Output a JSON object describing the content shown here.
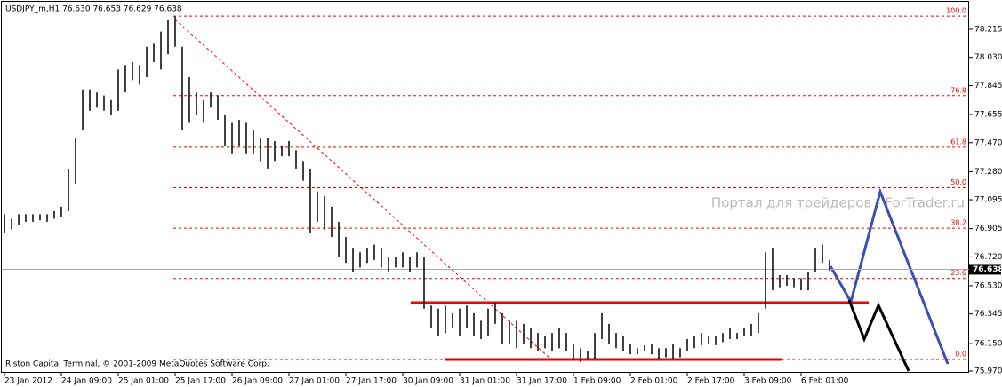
{
  "chart_data": {
    "type": "range-bar",
    "header": "USDJPY_m,H1  76.630 76.653 76.629 76.638",
    "watermark": "Портал для трейдеров - ForTrader.ru",
    "footer": "Riston Capital Terminal, © 2001-2009 MetaQuotes Software Corp.",
    "color": "#000000",
    "categories": [
      "23 Jan 2012",
      null,
      null,
      null,
      null,
      null,
      null,
      null,
      "24 Jan 09:00",
      null,
      null,
      null,
      null,
      null,
      null,
      null,
      "25 Jan 01:00",
      null,
      null,
      null,
      null,
      null,
      null,
      null,
      "25 Jan 17:00",
      null,
      null,
      null,
      null,
      null,
      null,
      null,
      "26 Jan 09:00",
      null,
      null,
      null,
      null,
      null,
      null,
      null,
      "27 Jan 01:00",
      null,
      null,
      null,
      null,
      null,
      null,
      null,
      "27 Jan 17:00",
      null,
      null,
      null,
      null,
      null,
      null,
      null,
      "30 Jan 09:00",
      null,
      null,
      null,
      null,
      null,
      null,
      null,
      "31 Jan 01:00",
      null,
      null,
      null,
      null,
      null,
      null,
      null,
      "31 Jan 17:00",
      null,
      null,
      null,
      null,
      null,
      null,
      null,
      "1 Feb 09:00",
      null,
      null,
      null,
      null,
      null,
      null,
      null,
      "2 Feb 01:00",
      null,
      null,
      null,
      null,
      null,
      null,
      null,
      "2 Feb 17:00",
      null,
      null,
      null,
      null,
      null,
      null,
      null,
      "3 Feb 09:00",
      null,
      null,
      null,
      null,
      null,
      null,
      null,
      "6 Feb 01:00",
      null,
      null,
      null,
      null
    ],
    "high": [
      77.0,
      76.97,
      77.0,
      77.0,
      77.0,
      77.0,
      77.0,
      77.02,
      77.05,
      77.3,
      77.5,
      77.82,
      77.82,
      77.8,
      77.78,
      77.75,
      77.95,
      77.98,
      78.0,
      77.98,
      78.1,
      78.12,
      78.2,
      78.28,
      78.3,
      78.1,
      77.9,
      77.8,
      77.75,
      77.8,
      77.78,
      77.65,
      77.6,
      77.62,
      77.6,
      77.55,
      77.5,
      77.5,
      77.48,
      77.45,
      77.48,
      77.42,
      77.35,
      77.3,
      77.15,
      77.12,
      77.05,
      76.95,
      76.85,
      76.78,
      76.75,
      76.78,
      76.8,
      76.78,
      76.72,
      76.72,
      76.75,
      76.72,
      76.75,
      76.72,
      76.4,
      76.38,
      76.4,
      76.35,
      76.38,
      76.4,
      76.35,
      76.3,
      76.38,
      76.42,
      76.35,
      76.3,
      76.3,
      76.28,
      76.25,
      76.22,
      76.2,
      76.22,
      76.25,
      76.22,
      76.15,
      76.12,
      76.1,
      76.22,
      76.35,
      76.28,
      76.22,
      76.2,
      76.15,
      76.12,
      76.14,
      76.15,
      76.12,
      76.12,
      76.15,
      76.12,
      76.18,
      76.2,
      76.22,
      76.2,
      76.2,
      76.22,
      76.25,
      76.22,
      76.25,
      76.28,
      76.35,
      76.75,
      76.78,
      76.6,
      76.6,
      76.58,
      76.58,
      76.62,
      76.78,
      76.8,
      76.7
    ],
    "low": [
      76.88,
      76.9,
      76.93,
      76.95,
      76.95,
      76.96,
      76.95,
      76.97,
      76.98,
      77.02,
      77.2,
      77.55,
      77.68,
      77.7,
      77.68,
      77.65,
      77.68,
      77.8,
      77.88,
      77.85,
      77.9,
      78.0,
      77.95,
      78.05,
      78.1,
      77.55,
      77.6,
      77.65,
      77.6,
      77.7,
      77.62,
      77.45,
      77.4,
      77.45,
      77.4,
      77.4,
      77.35,
      77.3,
      77.35,
      77.38,
      77.38,
      77.3,
      77.22,
      76.88,
      76.95,
      76.9,
      76.85,
      76.72,
      76.68,
      76.62,
      76.65,
      76.68,
      76.7,
      76.65,
      76.62,
      76.65,
      76.65,
      76.62,
      76.65,
      76.38,
      76.25,
      76.2,
      76.22,
      76.25,
      76.2,
      76.25,
      76.2,
      76.18,
      76.2,
      76.28,
      76.15,
      76.15,
      76.12,
      76.15,
      76.12,
      76.1,
      76.12,
      76.1,
      76.12,
      76.1,
      76.04,
      76.03,
      76.05,
      76.05,
      76.18,
      76.15,
      76.12,
      76.1,
      76.08,
      76.08,
      76.1,
      76.08,
      76.05,
      76.06,
      76.05,
      76.06,
      76.1,
      76.12,
      76.14,
      76.15,
      76.14,
      76.16,
      76.18,
      76.18,
      76.2,
      76.2,
      76.22,
      76.38,
      76.5,
      76.52,
      76.53,
      76.52,
      76.5,
      76.5,
      76.62,
      76.68,
      76.63
    ],
    "ylim": [
      75.97,
      78.215
    ],
    "yticks": [
      {
        "value": 78.215,
        "label": "78.215"
      },
      {
        "value": 78.03,
        "label": "78.030"
      },
      {
        "value": 77.845,
        "label": "77.845"
      },
      {
        "value": 77.655,
        "label": "77.655"
      },
      {
        "value": 77.47,
        "label": "77.470"
      },
      {
        "value": 77.28,
        "label": "77.280"
      },
      {
        "value": 77.095,
        "label": "77.095"
      },
      {
        "value": 76.905,
        "label": "76.905"
      },
      {
        "value": 76.72,
        "label": "76.720"
      },
      {
        "value": 76.53,
        "label": "76.530"
      },
      {
        "value": 76.345,
        "label": "76.345"
      },
      {
        "value": 76.15,
        "label": "76.150"
      },
      {
        "value": 75.97,
        "label": "75.970"
      }
    ],
    "last_price": 76.638,
    "fibo_levels": [
      {
        "label": "100.0",
        "value": 78.302
      },
      {
        "label": "76.8",
        "value": 77.779
      },
      {
        "label": "61.8",
        "value": 77.44
      },
      {
        "label": "50.0",
        "value": 77.174
      },
      {
        "label": "38.2",
        "value": 76.908
      },
      {
        "label": "23.6",
        "value": 76.578
      },
      {
        "label": "0.0",
        "value": 76.046
      }
    ]
  }
}
